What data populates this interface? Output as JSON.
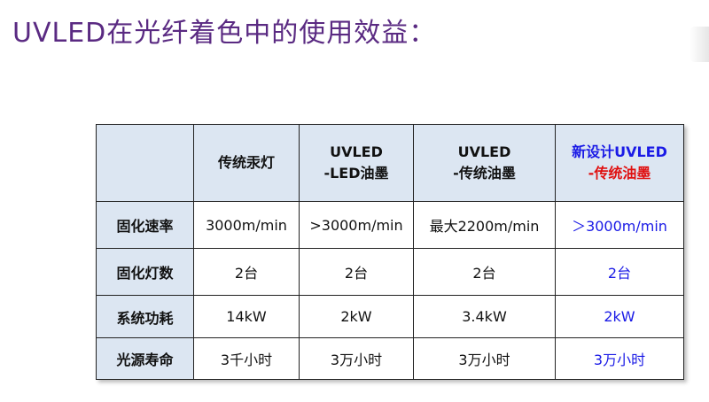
{
  "title": "UVLED在光纤着色中的使用效益：",
  "table": {
    "header": [
      [],
      [
        "传统汞灯"
      ],
      [
        "UVLED",
        "-LED油墨"
      ],
      [
        "UVLED",
        "-传统油墨"
      ],
      [
        "新设计UVLED",
        "-传统油墨"
      ]
    ],
    "rows": [
      [
        "固化速率",
        "3000m/min",
        ">3000m/min",
        "最大2200m/min",
        "＞3000m/min"
      ],
      [
        "固化灯数",
        "2台",
        "2台",
        "2台",
        "2台"
      ],
      [
        "系统功耗",
        "14kW",
        "2kW",
        "3.4kW",
        "2kW"
      ],
      [
        "光源寿命",
        "3千小时",
        "3万小时",
        "3万小时",
        "3万小时"
      ]
    ]
  }
}
